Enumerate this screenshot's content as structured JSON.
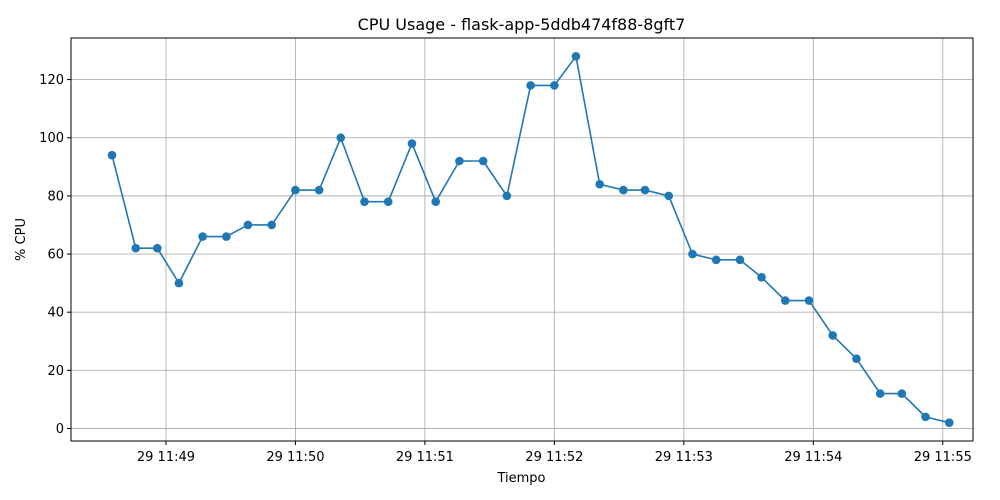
{
  "chart_data": {
    "type": "line",
    "title": "CPU Usage - flask-app-5ddb474f88-8gft7",
    "xlabel": "Tiempo",
    "ylabel": "% CPU",
    "ylim": [
      -4.3,
      134.3
    ],
    "yticks": [
      0,
      20,
      40,
      60,
      80,
      100,
      120
    ],
    "xlim": [
      "29 11:48:16",
      "29 11:55:14"
    ],
    "xticks": [
      {
        "label": "29 11:49",
        "time": "29 11:49:00"
      },
      {
        "label": "29 11:50",
        "time": "29 11:50:00"
      },
      {
        "label": "29 11:51",
        "time": "29 11:51:00"
      },
      {
        "label": "29 11:52",
        "time": "29 11:52:00"
      },
      {
        "label": "29 11:53",
        "time": "29 11:53:00"
      },
      {
        "label": "29 11:54",
        "time": "29 11:54:00"
      },
      {
        "label": "29 11:55",
        "time": "29 11:55:00"
      }
    ],
    "grid": true,
    "color": "#1f77b4",
    "series": [
      {
        "x": [
          "29 11:48:35",
          "29 11:48:46",
          "29 11:48:56",
          "29 11:49:06",
          "29 11:49:17",
          "29 11:49:28",
          "29 11:49:38",
          "29 11:49:49",
          "29 11:50:00",
          "29 11:50:11",
          "29 11:50:21",
          "29 11:50:32",
          "29 11:50:43",
          "29 11:50:54",
          "29 11:51:05",
          "29 11:51:16",
          "29 11:51:27",
          "29 11:51:38",
          "29 11:51:49",
          "29 11:52:00",
          "29 11:52:10",
          "29 11:52:21",
          "29 11:52:32",
          "29 11:52:42",
          "29 11:52:53",
          "29 11:53:04",
          "29 11:53:15",
          "29 11:53:26",
          "29 11:53:36",
          "29 11:53:47",
          "29 11:53:58",
          "29 11:54:09",
          "29 11:54:20",
          "29 11:54:31",
          "29 11:54:41",
          "29 11:54:52",
          "29 11:55:03"
        ],
        "y": [
          94,
          62,
          62,
          50,
          66,
          66,
          70,
          70,
          82,
          82,
          100,
          78,
          78,
          98,
          78,
          92,
          92,
          80,
          118,
          118,
          128,
          84,
          82,
          82,
          80,
          60,
          58,
          58,
          52,
          44,
          44,
          32,
          24,
          12,
          12,
          4,
          2
        ]
      }
    ]
  }
}
